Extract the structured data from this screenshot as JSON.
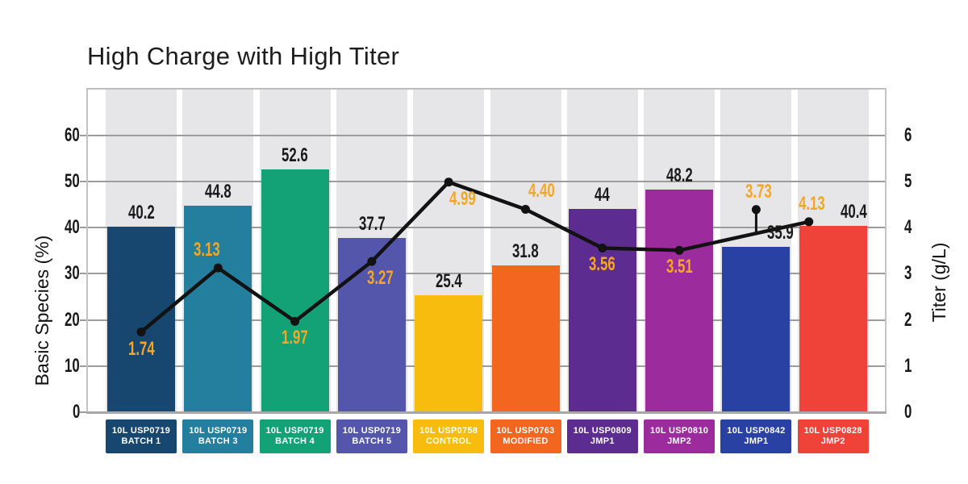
{
  "title": "High Charge with High Titer",
  "chart_data": {
    "type": "bar+line combo",
    "title": "High Charge with High Titer",
    "left_axis": {
      "label": "Basic Species (%)",
      "ticks": [
        0,
        10,
        20,
        30,
        40,
        50,
        60
      ],
      "max": 70
    },
    "right_axis": {
      "label": "Titer (g/L)",
      "ticks": [
        0,
        1,
        2,
        3,
        4,
        5,
        6
      ],
      "max": 7
    },
    "categories": [
      {
        "line1": "10L USP0719",
        "line2": "BATCH 1",
        "color": "#17466F"
      },
      {
        "line1": "10L USP0719",
        "line2": "BATCH 3",
        "color": "#247F9E"
      },
      {
        "line1": "10L USP0719",
        "line2": "BATCH 4",
        "color": "#12A276"
      },
      {
        "line1": "10L USP0719",
        "line2": "BATCH 5",
        "color": "#5356AA"
      },
      {
        "line1": "10L USP0758",
        "line2": "CONTROL",
        "color": "#F7BC0D"
      },
      {
        "line1": "10L USP0763",
        "line2": "MODIFIED",
        "color": "#F2661F"
      },
      {
        "line1": "10L USP0809",
        "line2": "JMP1",
        "color": "#5D2C90"
      },
      {
        "line1": "10L USP0810",
        "line2": "JMP2",
        "color": "#9C2C9D"
      },
      {
        "line1": "10L USP0842",
        "line2": "JMP1",
        "color": "#2A41A4"
      },
      {
        "line1": "10L USP0828",
        "line2": "JMP2",
        "color": "#EF4238"
      }
    ],
    "bars": {
      "name": "Basic Species (%)",
      "values": [
        40.2,
        44.8,
        52.6,
        37.7,
        25.4,
        31.8,
        44,
        48.2,
        35.9,
        40.4
      ],
      "labels": [
        "40.2",
        "44.8",
        "52.6",
        "37.7",
        "25.4",
        "31.8",
        "44",
        "48.2",
        "35.9",
        "40.4"
      ],
      "label_dx": [
        0,
        0,
        0,
        0,
        0,
        0,
        0,
        0,
        30,
        26
      ],
      "label_color": "#1a1a1a"
    },
    "line": {
      "name": "Titer (g/L)",
      "values": [
        1.74,
        3.13,
        1.97,
        3.27,
        4.99,
        4.4,
        3.56,
        3.51,
        3.73,
        4.13
      ],
      "labels": [
        "1.74",
        "3.13",
        "1.97",
        "3.27",
        "4.99",
        "4.40",
        "3.56",
        "3.51",
        "3.73",
        "4.13"
      ],
      "label_pos": [
        "below",
        "above",
        "below",
        "below",
        "below",
        "above",
        "below",
        "below",
        "above",
        "above"
      ],
      "label_dx": [
        0,
        -14,
        0,
        10,
        17,
        20,
        0,
        0,
        3,
        -26
      ],
      "last_point_dx": -30,
      "callout": {
        "index": 8,
        "marker_raise": 38
      },
      "color": "#121212",
      "label_color": "#F5A623"
    },
    "grid": "horizontal",
    "legend": "none"
  },
  "styles": {
    "band_color": "#E6E5E7",
    "grid_color": "#9C9C9C",
    "axis_line_color": "#A8A8A8",
    "frame_color": "#C4C4C4",
    "top_frame_color": "#BDBDBD"
  }
}
